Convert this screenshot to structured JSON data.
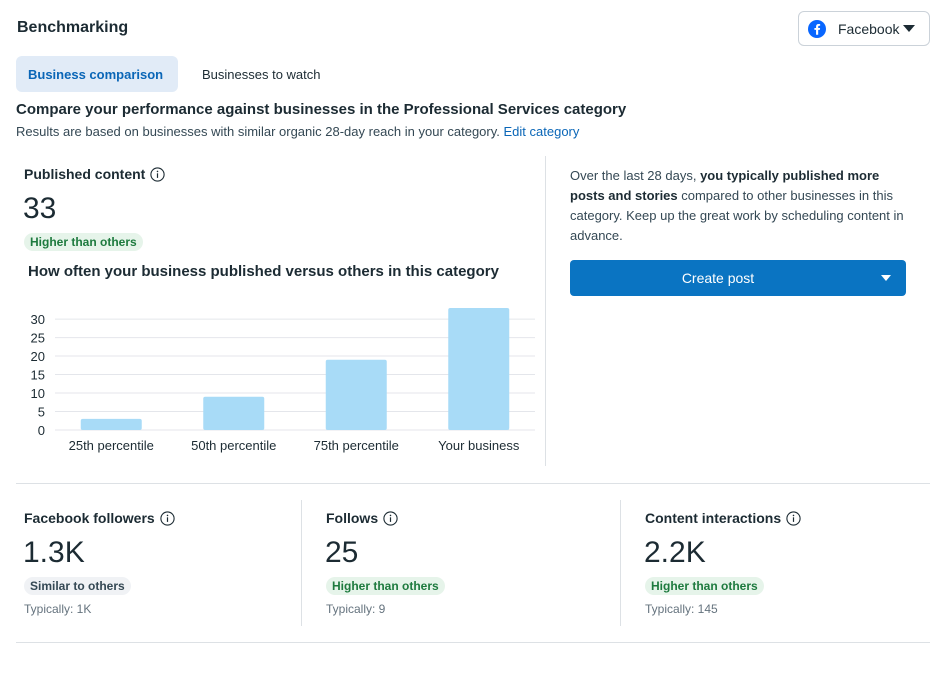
{
  "header": {
    "title": "Benchmarking"
  },
  "platform_select": {
    "label": "Facebook",
    "icon": "facebook-icon"
  },
  "tabs": [
    {
      "label": "Business comparison",
      "active": true
    },
    {
      "label": "Businesses to watch",
      "active": false
    }
  ],
  "comparison": {
    "title": "Compare your performance against businesses in the Professional Services category",
    "subtitle": "Results are based on businesses with similar organic 28-day reach in your category.",
    "edit_link": "Edit category"
  },
  "published": {
    "label": "Published content",
    "value": "33",
    "badge": "Higher than others"
  },
  "chart_title": "How often your business published versus others in this category",
  "chart_data": {
    "type": "bar",
    "categories": [
      "25th percentile",
      "50th percentile",
      "75th percentile",
      "Your business"
    ],
    "values": [
      3,
      9,
      19,
      33
    ],
    "yticks": [
      0,
      5,
      10,
      15,
      20,
      25,
      30
    ],
    "ylim": [
      0,
      33
    ],
    "bar_color": "#a8dbf7",
    "grid": true
  },
  "side": {
    "text_pre": "Over the last 28 days, ",
    "text_bold": "you typically published more posts and stories",
    "text_post": " compared to other businesses in this category. Keep up the great work by scheduling content in advance.",
    "button": "Create post"
  },
  "metrics": [
    {
      "label": "Facebook followers",
      "value": "1.3K",
      "badge": "Similar to others",
      "badge_type": "gray",
      "typical": "Typically: 1K"
    },
    {
      "label": "Follows",
      "value": "25",
      "badge": "Higher than others",
      "badge_type": "green",
      "typical": "Typically: 9"
    },
    {
      "label": "Content interactions",
      "value": "2.2K",
      "badge": "Higher than others",
      "badge_type": "green",
      "typical": "Typically: 145"
    }
  ],
  "colors": {
    "accent": "#0a74c2",
    "link": "#0a66b7",
    "green_badge": "#1d7a3e"
  }
}
